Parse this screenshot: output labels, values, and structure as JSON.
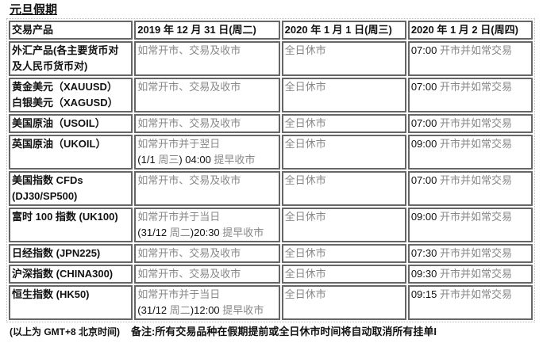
{
  "title": "元旦假期",
  "headers": [
    "交易产品",
    "2019 年 12 月 31 日(周二)",
    "2020 年 1 月 1 日(周三)",
    "2020 年 1 月 2 日(周四)"
  ],
  "rows": [
    {
      "product": [
        "外汇产品(各主要货币对",
        "及人民币货币对)"
      ],
      "d1": [
        [
          [
            "如常开市、交易及收市",
            0
          ]
        ]
      ],
      "d2": [
        [
          [
            "全日休市",
            0
          ]
        ]
      ],
      "d3": [
        [
          [
            "07:00",
            1
          ],
          [
            " 开市并如常交易",
            0
          ]
        ]
      ]
    },
    {
      "product": [
        "黄金美元（XAUUSD）",
        "白银美元（XAGUSD）"
      ],
      "d1": [
        [
          [
            "如常开市、交易及收市",
            0
          ]
        ]
      ],
      "d2": [
        [
          [
            "全日休市",
            0
          ]
        ]
      ],
      "d3": [
        [
          [
            "07:00",
            1
          ],
          [
            " 开市并如常交易",
            0
          ]
        ]
      ]
    },
    {
      "product": [
        "美国原油（USOIL）"
      ],
      "d1": [
        [
          [
            "如常开市、交易及收市",
            0
          ]
        ]
      ],
      "d2": [
        [
          [
            "全日休市",
            0
          ]
        ]
      ],
      "d3": [
        [
          [
            "07:00",
            1
          ],
          [
            " 开市并如常交易",
            0
          ]
        ]
      ]
    },
    {
      "product": [
        "英国原油（UKOIL）"
      ],
      "d1": [
        [
          [
            "如常开市并于翌日",
            0
          ]
        ],
        [
          [
            "(1/1 ",
            1
          ],
          [
            "周三",
            0
          ],
          [
            ") 04:00 ",
            1
          ],
          [
            "提早收市",
            0
          ]
        ]
      ],
      "d2": [
        [
          [
            "全日休市",
            0
          ]
        ]
      ],
      "d3": [
        [
          [
            "09:00",
            1
          ],
          [
            " 开市并如常交易",
            0
          ]
        ]
      ]
    },
    {
      "product": [
        "美国指数 CFDs",
        "(DJ30/SP500)"
      ],
      "d1": [
        [
          [
            "如常开市、交易及收市",
            0
          ]
        ]
      ],
      "d2": [
        [
          [
            "全日休市",
            0
          ]
        ]
      ],
      "d3": [
        [
          [
            "07:00",
            1
          ],
          [
            " 开市并如常交易",
            0
          ]
        ]
      ]
    },
    {
      "product": [
        "富时 100 指数 (UK100)"
      ],
      "d1": [
        [
          [
            "如常开市并于当日",
            0
          ]
        ],
        [
          [
            "(31/12 ",
            1
          ],
          [
            "周二",
            0
          ],
          [
            ")20:30 ",
            1
          ],
          [
            "提早收市",
            0
          ]
        ]
      ],
      "d2": [
        [
          [
            "全日休市",
            0
          ]
        ]
      ],
      "d3": [
        [
          [
            "09:00",
            1
          ],
          [
            " 开市并如常交易",
            0
          ]
        ]
      ]
    },
    {
      "product": [
        "日经指数 (JPN225)"
      ],
      "d1": [
        [
          [
            "如常开市、交易及收市",
            0
          ]
        ]
      ],
      "d2": [
        [
          [
            "全日休市",
            0
          ]
        ]
      ],
      "d3": [
        [
          [
            "07:30",
            1
          ],
          [
            " 开市并如常交易",
            0
          ]
        ]
      ]
    },
    {
      "product": [
        "沪深指数 (CHINA300)"
      ],
      "d1": [
        [
          [
            "如常开市、交易及收市",
            0
          ]
        ]
      ],
      "d2": [
        [
          [
            "全日休市",
            0
          ]
        ]
      ],
      "d3": [
        [
          [
            "09:30",
            1
          ],
          [
            " 开市并如常交易",
            0
          ]
        ]
      ]
    },
    {
      "product": [
        "恒生指数 (HK50)"
      ],
      "d1": [
        [
          [
            "如常开市并于当日",
            0
          ]
        ],
        [
          [
            "(31/12 ",
            1
          ],
          [
            "周二",
            0
          ],
          [
            ")12:00 ",
            1
          ],
          [
            "提早收市",
            0
          ]
        ]
      ],
      "d2": [
        [
          [
            "全日休市",
            0
          ]
        ]
      ],
      "d3": [
        [
          [
            "09:15",
            1
          ],
          [
            " 开市并如常交易",
            0
          ]
        ]
      ]
    }
  ],
  "footnote": {
    "timezone": "(以上为 GMT+8  北京时间)",
    "remark": "备注:所有交易品种在假期提前或全日休市时间将自动取消所有挂单I"
  }
}
